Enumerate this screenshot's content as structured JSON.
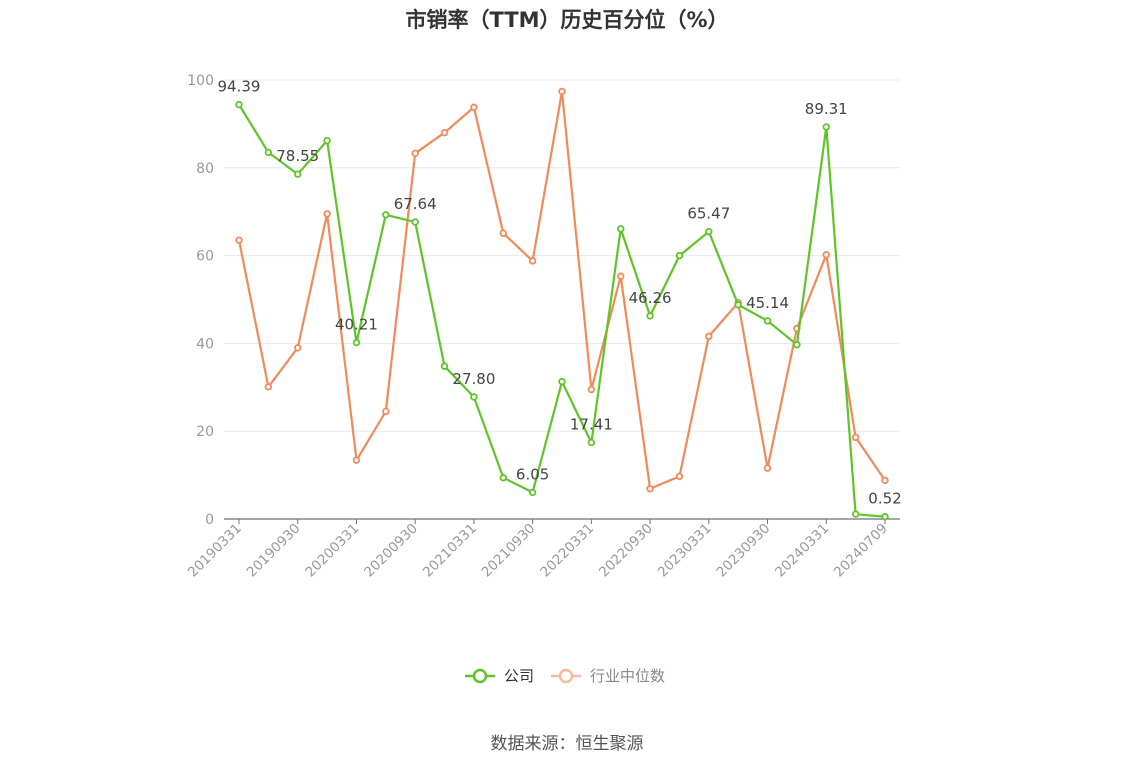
{
  "chart_data": {
    "type": "line",
    "title": "市销率（TTM）历史百分位（%）",
    "source": "数据来源：恒生聚源",
    "ylim": [
      0,
      100
    ],
    "yticks": [
      0,
      20,
      40,
      60,
      80,
      100
    ],
    "grid": true,
    "legend_position": "bottom",
    "x": [
      "20190331",
      "20190630",
      "20190930",
      "20191231",
      "20200331",
      "20200630",
      "20200930",
      "20201231",
      "20210331",
      "20210630",
      "20210930",
      "20211231",
      "20220331",
      "20220630",
      "20220930",
      "20221231",
      "20230331",
      "20230630",
      "20230930",
      "20231231",
      "20240331",
      "20240630",
      "20240709"
    ],
    "x_tick_labels": [
      "20190331",
      "20190930",
      "20200331",
      "20200930",
      "20210331",
      "20210930",
      "20220331",
      "20220930",
      "20230331",
      "20230930",
      "20240331",
      "20240709"
    ],
    "series": [
      {
        "name": "公司",
        "color": "#5ec427",
        "values": [
          94.39,
          83.5,
          78.55,
          86.2,
          40.21,
          69.3,
          67.64,
          34.8,
          27.8,
          9.4,
          6.05,
          31.3,
          17.41,
          66.1,
          46.26,
          60.0,
          65.47,
          48.8,
          45.14,
          39.7,
          89.31,
          1.1,
          0.52
        ],
        "labels": {
          "0": "94.39",
          "2": "78.55",
          "4": "40.21",
          "6": "67.64",
          "8": "27.80",
          "10": "6.05",
          "12": "17.41",
          "14": "46.26",
          "16": "65.47",
          "18": "45.14",
          "20": "89.31",
          "22": "0.52"
        }
      },
      {
        "name": "行业中位数",
        "color": "#f08a5a",
        "values": [
          63.5,
          30.1,
          39.0,
          69.5,
          13.4,
          24.5,
          83.3,
          88.0,
          93.8,
          65.1,
          58.8,
          97.4,
          29.5,
          55.3,
          6.9,
          9.7,
          41.6,
          49.3,
          11.6,
          43.4,
          60.2,
          18.6,
          8.8
        ]
      }
    ]
  }
}
